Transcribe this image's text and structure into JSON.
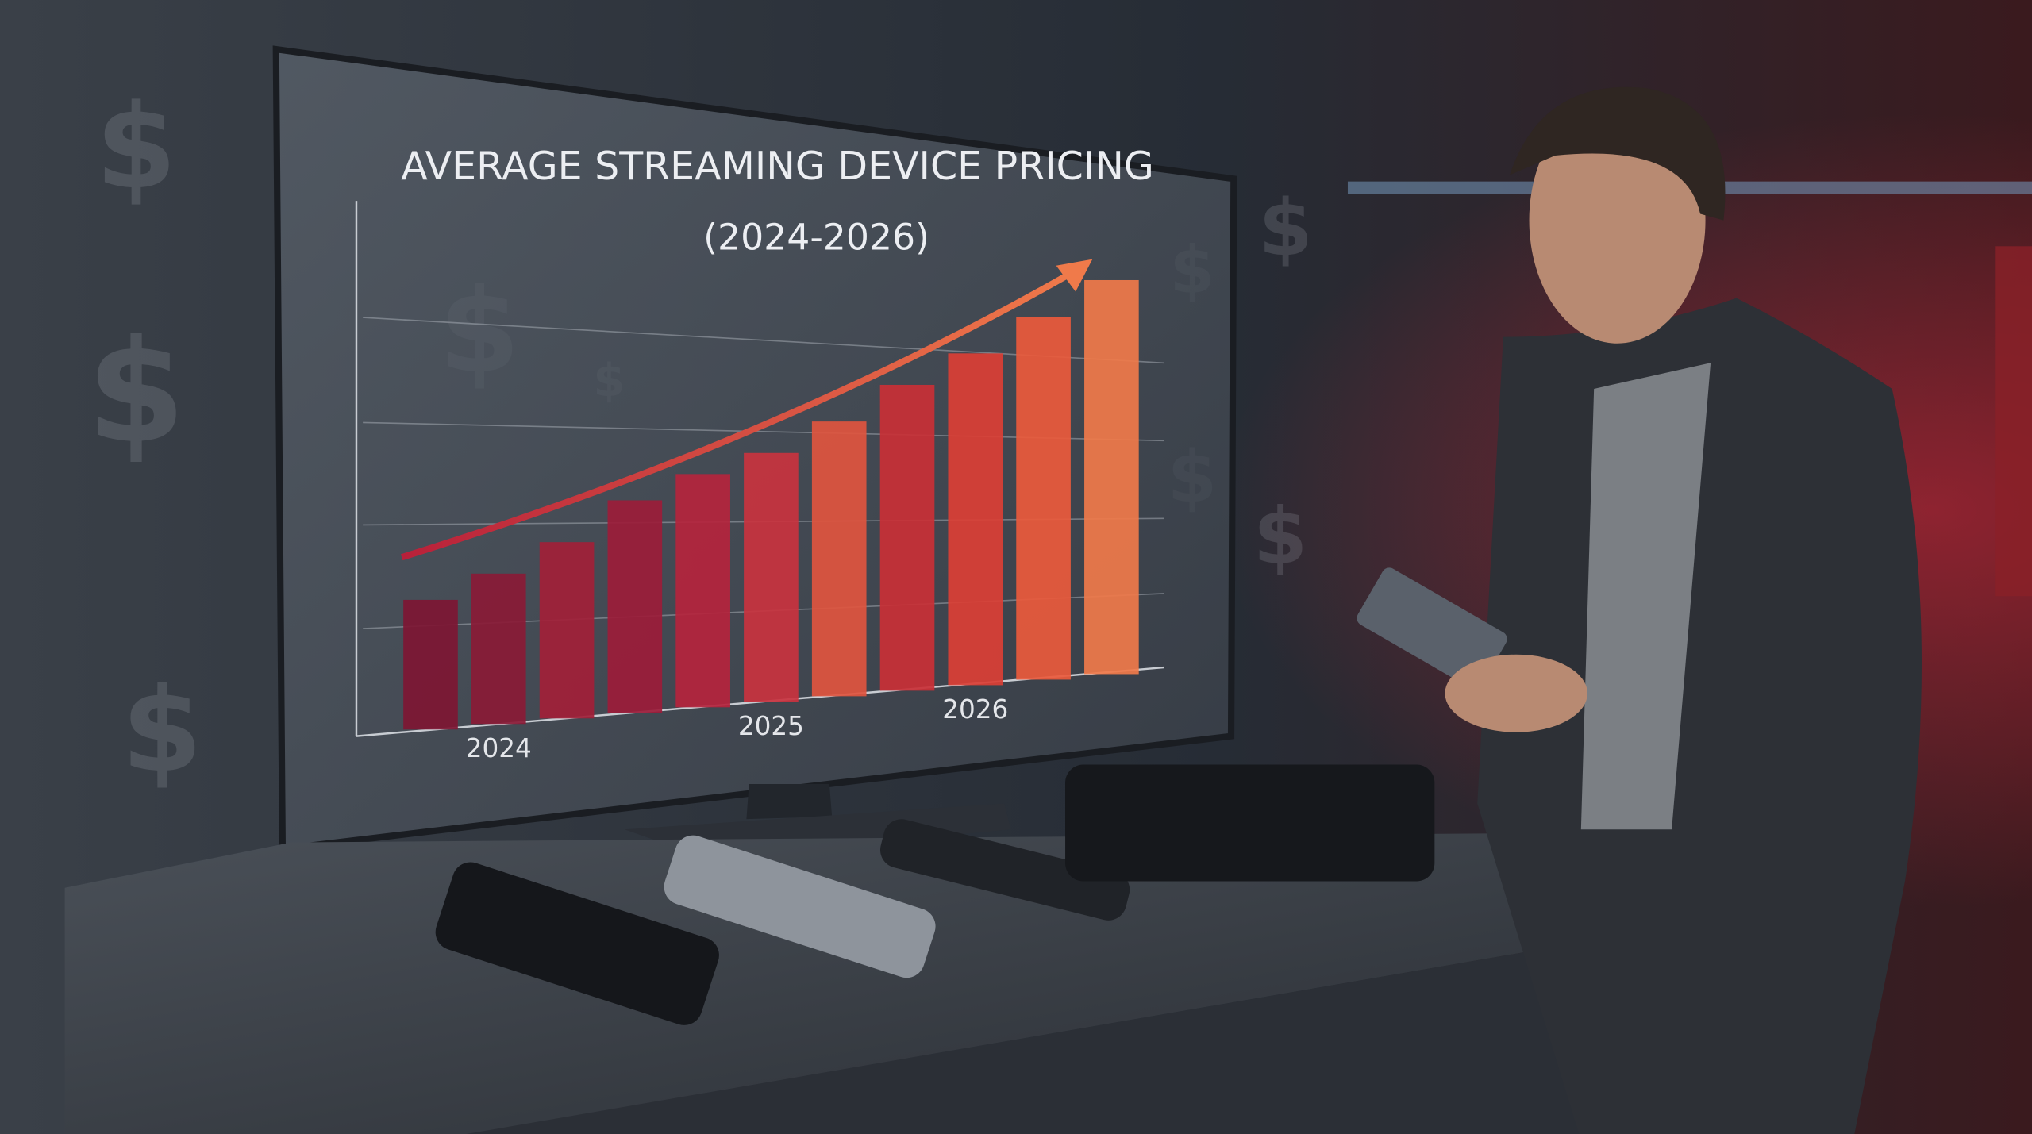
{
  "chart_data": {
    "type": "bar",
    "title": "AVERAGE STREAMING DEVICE PRICING",
    "subtitle": "(2024-2026)",
    "categories": [
      null,
      "2024",
      null,
      null,
      null,
      "2025",
      null,
      null,
      "2026",
      null,
      null
    ],
    "values": [
      1.25,
      1.45,
      1.7,
      2.05,
      2.25,
      2.4,
      2.65,
      2.95,
      3.2,
      3.5,
      3.8
    ],
    "colors": [
      "#7e1633",
      "#8a1a36",
      "#a21f38",
      "#9c1c3a",
      "#b5243d",
      "#c9333f",
      "#e0553f",
      "#c93036",
      "#db3f35",
      "#ea5a3c",
      "#f07a4a"
    ],
    "ylim": [
      0,
      5
    ]
  },
  "scene": {
    "symbol": "$"
  }
}
